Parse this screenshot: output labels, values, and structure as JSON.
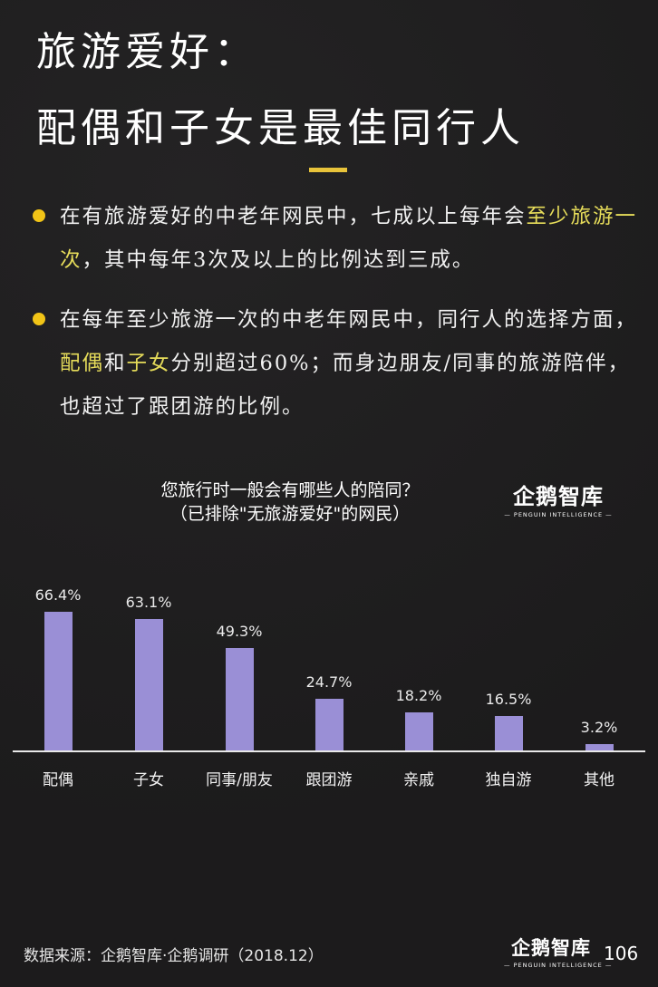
{
  "header": {
    "title_line1": "旅游爱好：",
    "title_line2": "配偶和子女是最佳同行人",
    "accent_color": "#e8c33a"
  },
  "bullets": [
    {
      "segments": [
        {
          "text": "在有旅游爱好的中老年网民中，七成以上每年会",
          "highlight": false
        },
        {
          "text": "至少旅游一次",
          "highlight": true
        },
        {
          "text": "，其中每年3次及以上的比例达到三成。",
          "highlight": false
        }
      ]
    },
    {
      "segments": [
        {
          "text": "在每年至少旅游一次的中老年网民中，同行人的选择方面，",
          "highlight": false
        },
        {
          "text": "配偶",
          "highlight": true
        },
        {
          "text": "和",
          "highlight": false
        },
        {
          "text": "子女",
          "highlight": true
        },
        {
          "text": "分别超过60%；而身边朋友/同事的旅游陪伴，也超过了跟团游的比例。",
          "highlight": false
        }
      ]
    }
  ],
  "logo": {
    "name": "企鹅智库",
    "tagline": "— PENGUIN INTELLIGENCE —"
  },
  "chart_data": {
    "type": "bar",
    "title": "您旅行时一般会有哪些人的陪同？",
    "subtitle": "（已排除\"无旅游爱好\"的网民）",
    "categories": [
      "配偶",
      "子女",
      "同事/朋友",
      "跟团游",
      "亲戚",
      "独自游",
      "其他"
    ],
    "values": [
      66.4,
      63.1,
      49.3,
      24.7,
      18.2,
      16.5,
      3.2
    ],
    "value_labels": [
      "66.4%",
      "63.1%",
      "49.3%",
      "24.7%",
      "18.2%",
      "16.5%",
      "3.2%"
    ],
    "unit": "%",
    "xlabel": "",
    "ylabel": "",
    "ylim": [
      0,
      70
    ],
    "grid": false,
    "legend": null,
    "bar_color": "#9a8fd6"
  },
  "footer": {
    "source": "数据来源：企鹅智库·企鹅调研（2018.12）",
    "page_number": "106"
  }
}
